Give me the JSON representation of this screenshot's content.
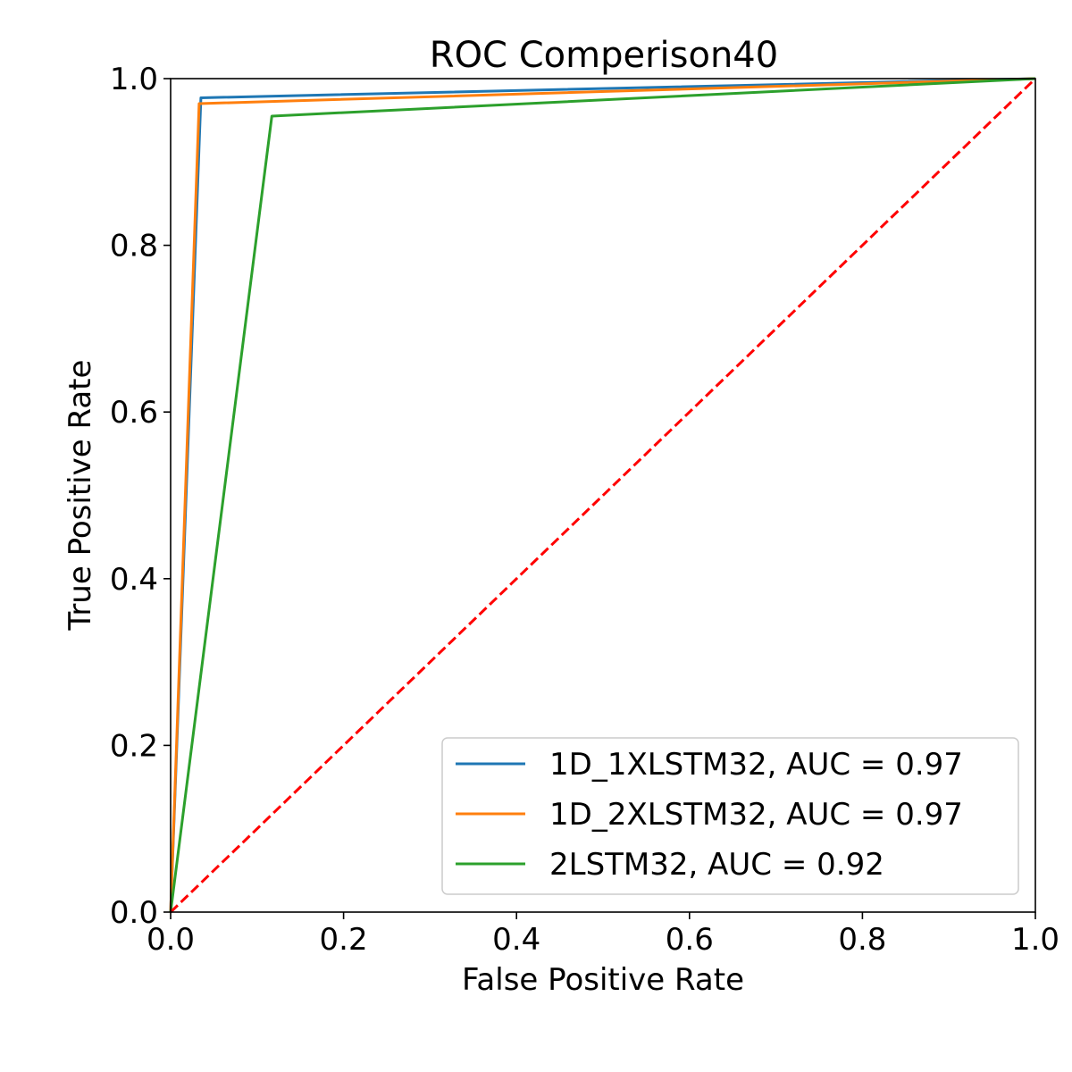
{
  "chart_data": {
    "type": "line",
    "title": "ROC Comperison40",
    "xlabel": "False Positive Rate",
    "ylabel": "True Positive Rate",
    "xlim": [
      0.0,
      1.0
    ],
    "ylim": [
      0.0,
      1.0
    ],
    "xticks": [
      "0.0",
      "0.2",
      "0.4",
      "0.6",
      "0.8",
      "1.0"
    ],
    "yticks": [
      "0.0",
      "0.2",
      "0.4",
      "0.6",
      "0.8",
      "1.0"
    ],
    "grid": false,
    "legend_position": "lower-right",
    "series": [
      {
        "name": "1D_1XLSTM32, AUC = 0.97",
        "color": "#1f77b4",
        "style": "solid",
        "x": [
          0.0,
          0.035,
          1.0
        ],
        "y": [
          0.0,
          0.977,
          1.0
        ]
      },
      {
        "name": "1D_2XLSTM32, AUC = 0.97",
        "color": "#ff7f0e",
        "style": "solid",
        "x": [
          0.0,
          0.033,
          1.0
        ],
        "y": [
          0.0,
          0.97,
          1.0
        ]
      },
      {
        "name": "2LSTM32, AUC = 0.92",
        "color": "#2ca02c",
        "style": "solid",
        "x": [
          0.0,
          0.117,
          1.0
        ],
        "y": [
          0.0,
          0.955,
          1.0
        ]
      }
    ],
    "reference_line": {
      "color": "#ff0000",
      "style": "dashed",
      "x": [
        0.0,
        1.0
      ],
      "y": [
        0.0,
        1.0
      ]
    }
  }
}
